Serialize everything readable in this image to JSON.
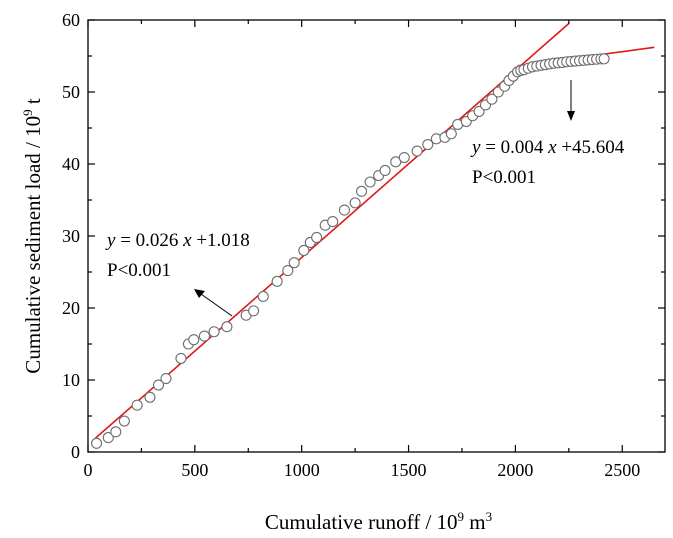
{
  "chart_data": {
    "type": "scatter",
    "title": "",
    "xlabel": {
      "main": "Cumulative runoff / 10",
      "sup": "9",
      "unit": " m",
      "unit_sup": "3"
    },
    "ylabel": {
      "main": "Cumulative sediment load / 10",
      "sup": "9",
      "unit": " t"
    },
    "xlim": [
      0,
      2700
    ],
    "ylim": [
      0,
      60
    ],
    "xticks": [
      0,
      500,
      1000,
      1500,
      2000,
      2500
    ],
    "yticks": [
      0,
      10,
      20,
      30,
      40,
      50,
      60
    ],
    "grid": false,
    "colors": {
      "points": "#6e6e6e",
      "fit": "#e01818",
      "axes": "#000000"
    },
    "points": [
      [
        40,
        1.2
      ],
      [
        95,
        2.0
      ],
      [
        130,
        2.8
      ],
      [
        170,
        4.3
      ],
      [
        230,
        6.5
      ],
      [
        290,
        7.6
      ],
      [
        330,
        9.3
      ],
      [
        365,
        10.2
      ],
      [
        435,
        13.0
      ],
      [
        470,
        15.0
      ],
      [
        495,
        15.6
      ],
      [
        545,
        16.1
      ],
      [
        590,
        16.7
      ],
      [
        650,
        17.4
      ],
      [
        740,
        19.0
      ],
      [
        775,
        19.6
      ],
      [
        820,
        21.6
      ],
      [
        885,
        23.7
      ],
      [
        935,
        25.2
      ],
      [
        965,
        26.3
      ],
      [
        1010,
        28.0
      ],
      [
        1040,
        29.1
      ],
      [
        1070,
        29.8
      ],
      [
        1110,
        31.5
      ],
      [
        1145,
        32.0
      ],
      [
        1200,
        33.6
      ],
      [
        1250,
        34.6
      ],
      [
        1280,
        36.2
      ],
      [
        1320,
        37.5
      ],
      [
        1360,
        38.4
      ],
      [
        1390,
        39.1
      ],
      [
        1440,
        40.3
      ],
      [
        1480,
        40.9
      ],
      [
        1540,
        41.8
      ],
      [
        1590,
        42.7
      ],
      [
        1630,
        43.5
      ],
      [
        1670,
        43.7
      ],
      [
        1700,
        44.2
      ],
      [
        1730,
        45.5
      ],
      [
        1770,
        45.9
      ],
      [
        1800,
        46.7
      ],
      [
        1830,
        47.3
      ],
      [
        1860,
        48.2
      ],
      [
        1890,
        49.0
      ],
      [
        1920,
        50.0
      ],
      [
        1950,
        50.8
      ],
      [
        1970,
        51.6
      ],
      [
        1990,
        52.2
      ],
      [
        2010,
        52.8
      ],
      [
        2025,
        53.0
      ],
      [
        2040,
        53.1
      ],
      [
        2060,
        53.3
      ],
      [
        2080,
        53.5
      ],
      [
        2100,
        53.6
      ],
      [
        2120,
        53.7
      ],
      [
        2140,
        53.8
      ],
      [
        2160,
        53.9
      ],
      [
        2180,
        54.0
      ],
      [
        2200,
        54.05
      ],
      [
        2220,
        54.1
      ],
      [
        2240,
        54.2
      ],
      [
        2260,
        54.25
      ],
      [
        2280,
        54.3
      ],
      [
        2300,
        54.35
      ],
      [
        2320,
        54.4
      ],
      [
        2340,
        54.45
      ],
      [
        2360,
        54.5
      ],
      [
        2380,
        54.55
      ],
      [
        2400,
        54.6
      ],
      [
        2415,
        54.6
      ]
    ],
    "fits": [
      {
        "slope": 0.026,
        "intercept": 1.018,
        "x_range": [
          35,
          2250
        ]
      },
      {
        "slope": 0.004,
        "intercept": 45.604,
        "x_range": [
          2010,
          2650
        ]
      }
    ],
    "annotations": [
      {
        "text_var": "y",
        "text_eq": " = 0.026 ",
        "text_var2": "x",
        "text_rest": " +1.018",
        "p_text": "P<0.001"
      },
      {
        "text_var": "y",
        "text_eq": " = 0.004 ",
        "text_var2": "x",
        "text_rest": " +45.604",
        "p_text": "P<0.001"
      }
    ]
  }
}
